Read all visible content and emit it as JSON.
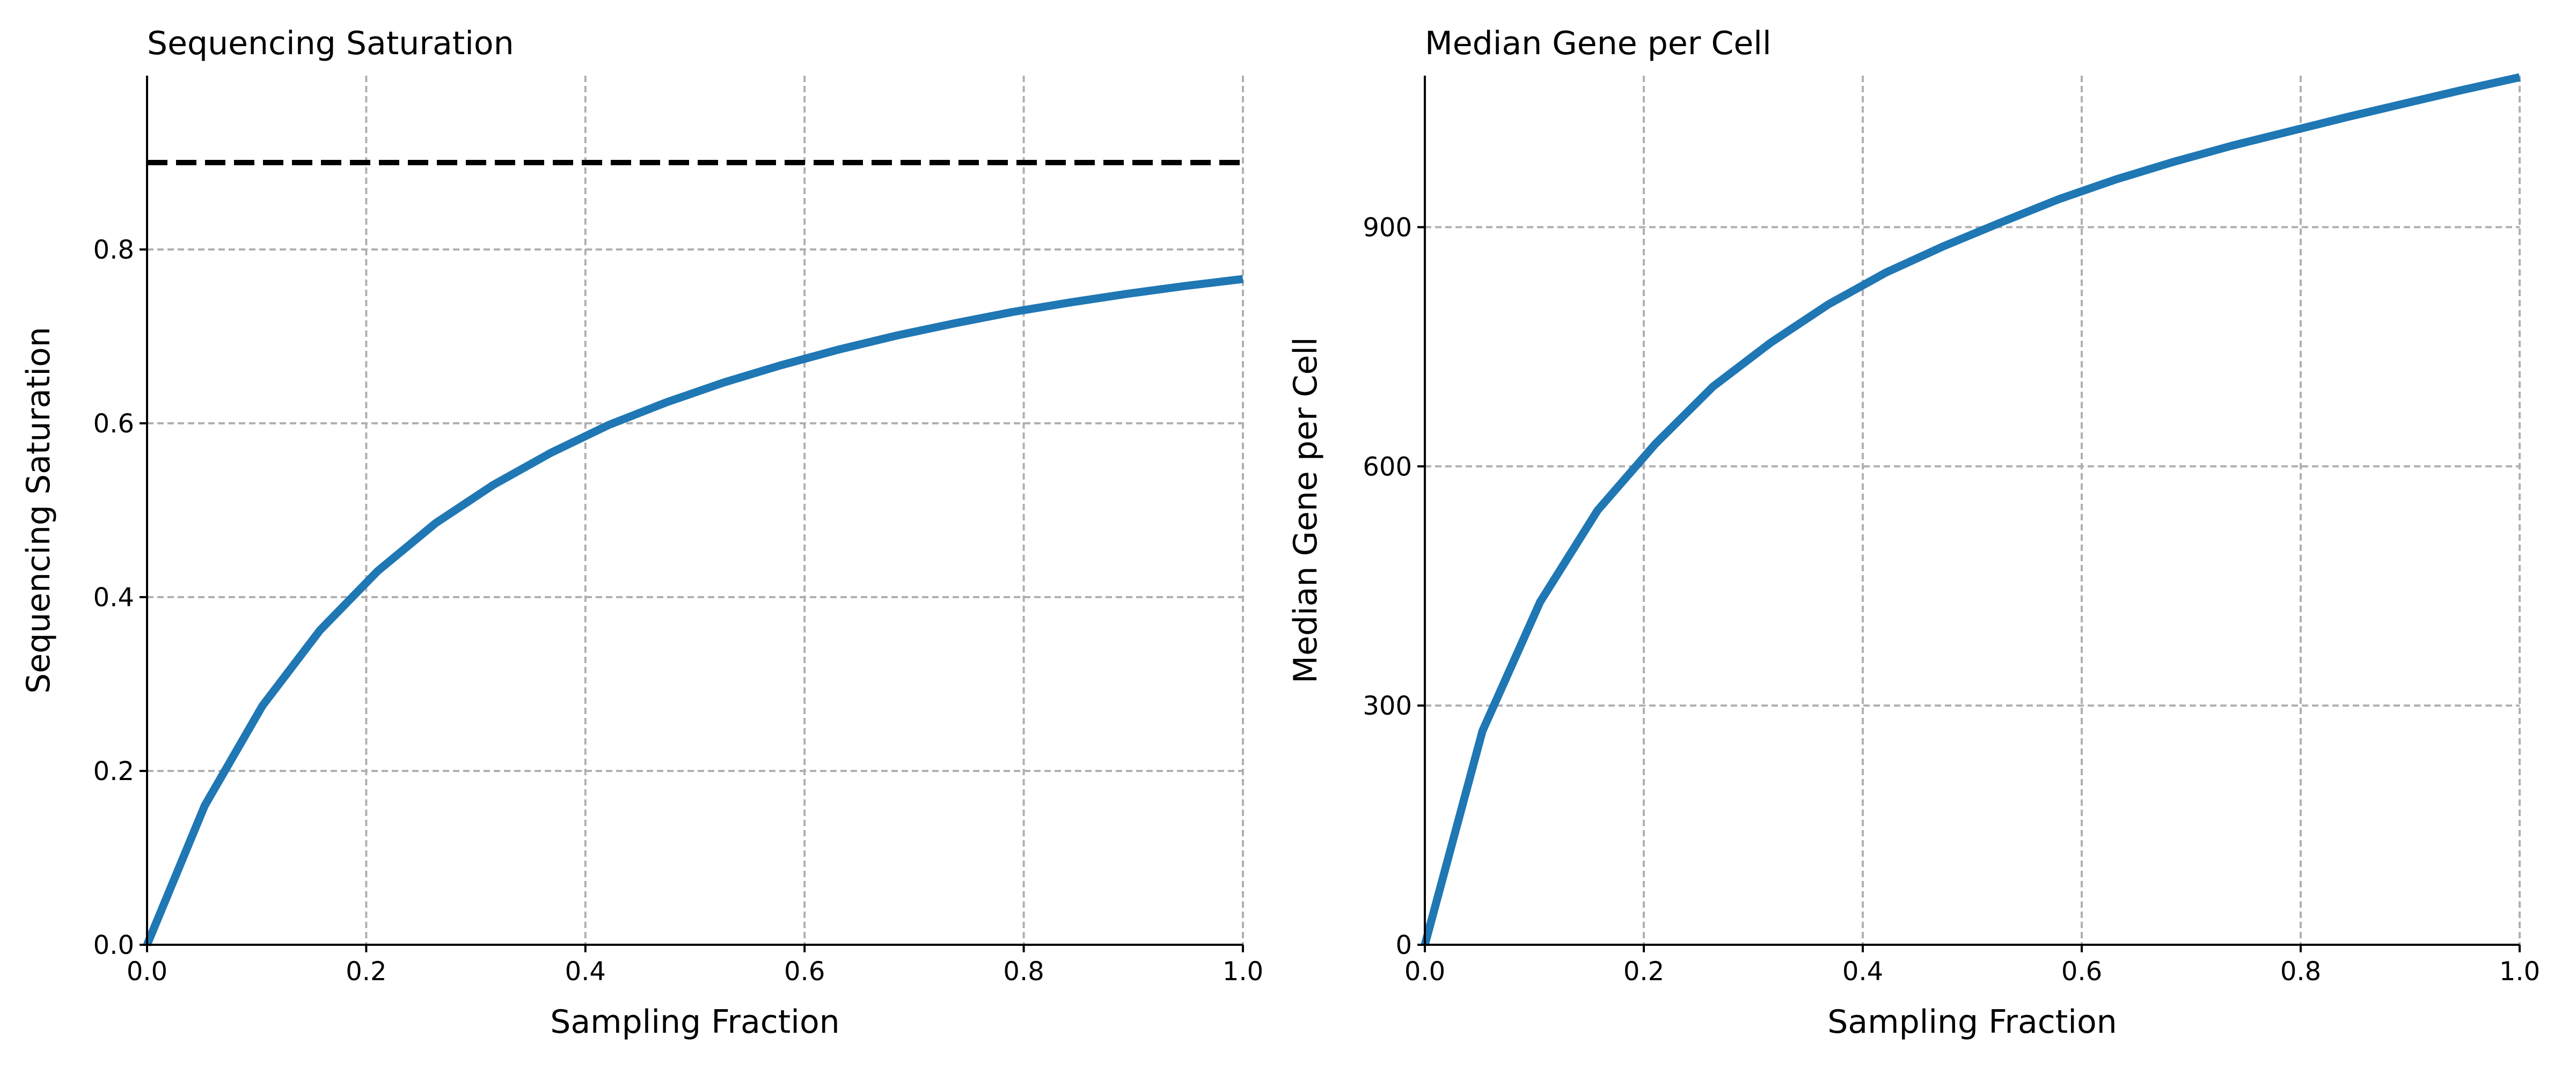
{
  "chart_data": [
    {
      "type": "line",
      "title": "Sequencing Saturation",
      "xlabel": "Sampling Fraction",
      "ylabel": "Sequencing Saturation",
      "xlim": [
        0,
        1
      ],
      "ylim": [
        0,
        1
      ],
      "xticks": [
        "0.0",
        "0.2",
        "0.4",
        "0.6",
        "0.8",
        "1.0"
      ],
      "yticks": [
        "0.0",
        "0.2",
        "0.4",
        "0.6",
        "0.8"
      ],
      "grid": true,
      "series": [
        {
          "x": [
            0.0,
            0.0526,
            0.1053,
            0.1579,
            0.2105,
            0.2632,
            0.3158,
            0.3684,
            0.4211,
            0.4737,
            0.5263,
            0.5789,
            0.6316,
            0.6842,
            0.7368,
            0.7895,
            0.8421,
            0.8947,
            0.9474,
            1.0
          ],
          "y": [
            0.0,
            0.16,
            0.275,
            0.362,
            0.43,
            0.485,
            0.529,
            0.566,
            0.598,
            0.624,
            0.647,
            0.667,
            0.685,
            0.701,
            0.715,
            0.728,
            0.739,
            0.749,
            0.758,
            0.766
          ],
          "color": "#1f77b4"
        }
      ],
      "reference_line": {
        "y": 0.9,
        "style": "dashed",
        "color": "#000000"
      }
    },
    {
      "type": "line",
      "title": "Median Gene per Cell",
      "xlabel": "Sampling Fraction",
      "ylabel": "Median Gene per Cell",
      "xlim": [
        0,
        1
      ],
      "ylim": [
        0,
        1090
      ],
      "xticks": [
        "0.0",
        "0.2",
        "0.4",
        "0.6",
        "0.8",
        "1.0"
      ],
      "yticks": [
        "0",
        "300",
        "600",
        "900"
      ],
      "grid": true,
      "series": [
        {
          "x": [
            0.0,
            0.0526,
            0.1053,
            0.1579,
            0.2105,
            0.2632,
            0.3158,
            0.3684,
            0.4211,
            0.4737,
            0.5263,
            0.5789,
            0.6316,
            0.6842,
            0.7368,
            0.7895,
            0.8421,
            0.8947,
            0.9474,
            1.0
          ],
          "y": [
            0,
            268,
            430,
            545,
            628,
            700,
            755,
            803,
            843,
            876,
            906,
            935,
            960,
            982,
            1002,
            1020,
            1038,
            1055,
            1072,
            1088
          ],
          "color": "#1f77b4"
        }
      ]
    }
  ]
}
